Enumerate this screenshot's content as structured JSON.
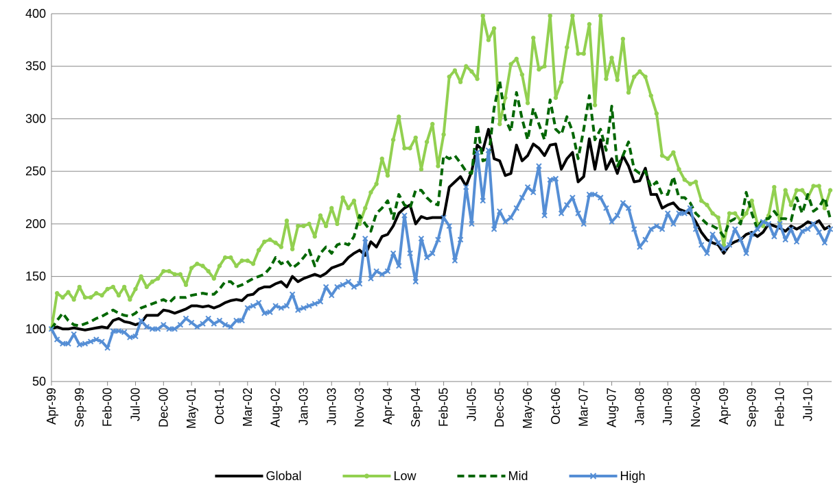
{
  "chart_data": {
    "type": "line",
    "categories": [
      "Apr-99",
      null,
      null,
      null,
      null,
      "Sep-99",
      null,
      null,
      null,
      null,
      "Feb-00",
      null,
      null,
      null,
      null,
      "Jul-00",
      null,
      null,
      null,
      null,
      "Dec-00",
      null,
      null,
      null,
      null,
      "May-01",
      null,
      null,
      null,
      null,
      "Oct-01",
      null,
      null,
      null,
      null,
      "Mar-02",
      null,
      null,
      null,
      null,
      "Aug-02",
      null,
      null,
      null,
      null,
      "Jan-03",
      null,
      null,
      null,
      null,
      "Jun-03",
      null,
      null,
      null,
      null,
      "Nov-03",
      null,
      null,
      null,
      null,
      "Apr-04",
      null,
      null,
      null,
      null,
      "Sep-04",
      null,
      null,
      null,
      null,
      "Feb-05",
      null,
      null,
      null,
      null,
      "Jul-05",
      null,
      null,
      null,
      null,
      "Dec-05",
      null,
      null,
      null,
      null,
      "May-06",
      null,
      null,
      null,
      null,
      "Oct-06",
      null,
      null,
      null,
      null,
      "Mar-07",
      null,
      null,
      null,
      null,
      "Aug-07",
      null,
      null,
      null,
      null,
      "Jan-08",
      null,
      null,
      null,
      null,
      "Jun-08",
      null,
      null,
      null,
      null,
      "Nov-08",
      null,
      null,
      null,
      null,
      "Apr-09",
      null,
      null,
      null,
      null,
      "Sep-09",
      null,
      null,
      null,
      null,
      "Feb-10",
      null,
      null,
      null,
      null,
      "Jul-10",
      null,
      null,
      null,
      null
    ],
    "series": [
      {
        "name": "Global",
        "color": "#000000",
        "dash": false,
        "marker": "none",
        "values": [
          100,
          102,
          100,
          100,
          101,
          100,
          99,
          100,
          101,
          102,
          101,
          108,
          110,
          107,
          106,
          104,
          106,
          113,
          113,
          113,
          118,
          117,
          115,
          117,
          119,
          122,
          122,
          121,
          122,
          120,
          122,
          125,
          127,
          128,
          127,
          132,
          133,
          138,
          140,
          140,
          143,
          145,
          140,
          150,
          145,
          148,
          150,
          152,
          150,
          153,
          158,
          160,
          162,
          168,
          172,
          175,
          170,
          183,
          178,
          188,
          190,
          198,
          210,
          215,
          218,
          200,
          207,
          205,
          206,
          206,
          206,
          235,
          240,
          245,
          236,
          250,
          275,
          270,
          290,
          262,
          260,
          246,
          248,
          275,
          260,
          265,
          276,
          272,
          265,
          275,
          276,
          252,
          262,
          268,
          240,
          245,
          281,
          252,
          280,
          252,
          262,
          248,
          265,
          255,
          240,
          241,
          253,
          228,
          228,
          215,
          218,
          220,
          214,
          212,
          210,
          202,
          192,
          185,
          182,
          180,
          172,
          180,
          183,
          185,
          190,
          192,
          188,
          192,
          200,
          198,
          196,
          193,
          198,
          195,
          198,
          202,
          200,
          203,
          195,
          198
        ]
      },
      {
        "name": "Low",
        "color": "#92d050",
        "dash": false,
        "marker": "circle",
        "values": [
          100,
          134,
          130,
          135,
          128,
          140,
          130,
          130,
          134,
          132,
          138,
          140,
          132,
          140,
          128,
          138,
          150,
          140,
          145,
          148,
          155,
          155,
          152,
          152,
          142,
          158,
          162,
          160,
          155,
          148,
          160,
          168,
          168,
          160,
          165,
          165,
          162,
          175,
          183,
          185,
          182,
          178,
          203,
          176,
          198,
          198,
          200,
          188,
          208,
          198,
          215,
          200,
          225,
          215,
          222,
          200,
          215,
          230,
          238,
          262,
          246,
          280,
          302,
          272,
          272,
          282,
          252,
          278,
          295,
          255,
          285,
          340,
          346,
          335,
          350,
          345,
          338,
          398,
          375,
          386,
          295,
          320,
          352,
          357,
          342,
          315,
          377,
          347,
          350,
          398,
          320,
          335,
          368,
          398,
          362,
          362,
          390,
          313,
          398,
          338,
          358,
          337,
          376,
          325,
          340,
          345,
          340,
          322,
          305,
          265,
          262,
          268,
          252,
          242,
          238,
          240,
          222,
          218,
          210,
          206,
          180,
          210,
          210,
          203,
          210,
          222,
          200,
          198,
          208,
          235,
          200,
          232,
          218,
          232,
          232,
          225,
          236,
          236,
          215,
          232
        ]
      },
      {
        "name": "Mid",
        "color": "#006600",
        "dash": true,
        "marker": "none",
        "values": [
          100,
          108,
          115,
          108,
          104,
          103,
          105,
          107,
          110,
          112,
          115,
          118,
          115,
          113,
          112,
          115,
          120,
          122,
          124,
          126,
          128,
          125,
          130,
          130,
          130,
          132,
          133,
          134,
          133,
          133,
          138,
          145,
          145,
          140,
          142,
          145,
          148,
          150,
          152,
          158,
          168,
          162,
          165,
          158,
          162,
          168,
          175,
          160,
          172,
          178,
          172,
          180,
          182,
          180,
          188,
          208,
          200,
          193,
          210,
          215,
          222,
          205,
          228,
          218,
          215,
          232,
          232,
          225,
          220,
          218,
          265,
          262,
          265,
          258,
          250,
          248,
          295,
          260,
          262,
          310,
          336,
          300,
          288,
          325,
          300,
          280,
          310,
          295,
          280,
          318,
          290,
          285,
          302,
          288,
          262,
          290,
          322,
          280,
          290,
          270,
          312,
          255,
          265,
          278,
          252,
          248,
          250,
          235,
          240,
          228,
          228,
          245,
          225,
          225,
          220,
          210,
          205,
          200,
          198,
          195,
          188,
          202,
          205,
          200,
          230,
          210,
          195,
          205,
          205,
          212,
          205,
          205,
          203,
          225,
          210,
          228,
          212,
          216,
          225,
          205
        ]
      },
      {
        "name": "High",
        "color": "#558ed5",
        "dash": false,
        "marker": "x",
        "values": [
          100,
          90,
          86,
          86,
          95,
          85,
          86,
          88,
          90,
          88,
          82,
          98,
          98,
          97,
          92,
          93,
          108,
          102,
          100,
          100,
          104,
          100,
          100,
          104,
          110,
          106,
          102,
          105,
          110,
          105,
          108,
          104,
          102,
          108,
          108,
          120,
          122,
          125,
          115,
          116,
          122,
          120,
          122,
          133,
          118,
          120,
          122,
          124,
          126,
          140,
          132,
          140,
          142,
          145,
          140,
          143,
          186,
          148,
          155,
          152,
          155,
          172,
          160,
          208,
          172,
          145,
          186,
          168,
          172,
          185,
          206,
          198,
          165,
          185,
          235,
          200,
          268,
          222,
          270,
          195,
          212,
          202,
          206,
          215,
          225,
          235,
          230,
          255,
          208,
          242,
          243,
          210,
          218,
          225,
          210,
          200,
          228,
          228,
          225,
          215,
          202,
          208,
          220,
          215,
          195,
          178,
          185,
          195,
          198,
          195,
          210,
          200,
          210,
          210,
          215,
          195,
          180,
          172,
          190,
          182,
          176,
          180,
          195,
          185,
          172,
          190,
          195,
          202,
          200,
          188,
          200,
          185,
          195,
          183,
          193,
          195,
          200,
          192,
          182,
          195
        ]
      }
    ],
    "ylim": [
      50,
      400
    ],
    "yticks": [
      50,
      100,
      150,
      200,
      250,
      300,
      350,
      400
    ],
    "grid": true,
    "legend": "bottom"
  }
}
